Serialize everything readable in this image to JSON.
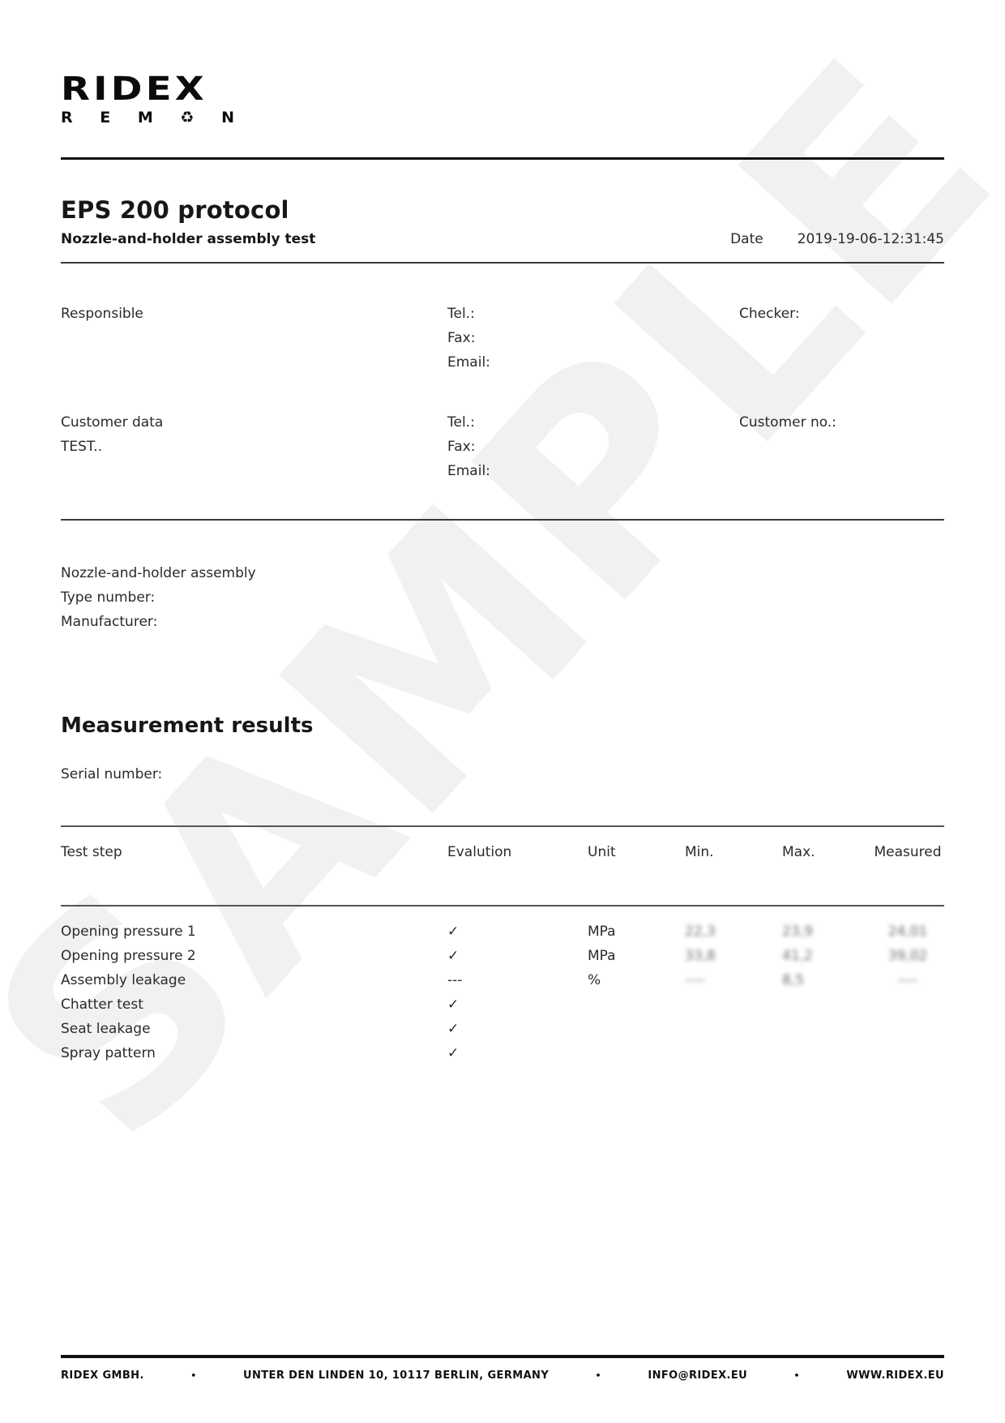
{
  "logo": {
    "name": "RIDEX",
    "reman": [
      "R",
      "E",
      "M",
      "♻",
      "N"
    ]
  },
  "watermark": {
    "text": "SAMPLE"
  },
  "header": {
    "title": "EPS 200 protocol",
    "subtitle": "Nozzle-and-holder assembly test",
    "date_label": "Date",
    "date_value": "2019-19-06-12:31:45"
  },
  "responsible": {
    "label": "Responsible",
    "tel_label": "Tel.:",
    "fax_label": "Fax:",
    "email_label": "Email:",
    "checker_label": "Checker:"
  },
  "customer": {
    "label": "Customer data",
    "name": "TEST..",
    "tel_label": "Tel.:",
    "fax_label": "Fax:",
    "email_label": "Email:",
    "customer_no_label": "Customer no.:"
  },
  "assembly": {
    "title": "Nozzle-and-holder assembly",
    "type_number_label": "Type number:",
    "manufacturer_label": "Manufacturer:"
  },
  "results": {
    "heading": "Measurement results",
    "serial_label": "Serial number:",
    "table": {
      "headers": [
        "Test step",
        "Evalution",
        "Unit",
        "Min.",
        "Max.",
        "Measured"
      ],
      "rows": [
        {
          "step": "Opening pressure 1",
          "evaluation": "✓",
          "unit": "MPa",
          "min": "22,3",
          "max": "23,9",
          "measured": "24,01",
          "blurred": true
        },
        {
          "step": "Opening pressure 2",
          "evaluation": "✓",
          "unit": "MPa",
          "min": "33,8",
          "max": "41,2",
          "measured": "39,02",
          "blurred": true
        },
        {
          "step": "Assembly leakage",
          "evaluation": "---",
          "unit": "%",
          "min": "----",
          "max": "8,5",
          "measured": "----",
          "blurred": true
        },
        {
          "step": "Chatter test",
          "evaluation": "✓",
          "unit": "",
          "min": "",
          "max": "",
          "measured": "",
          "blurred": false
        },
        {
          "step": "Seat leakage",
          "evaluation": "✓",
          "unit": "",
          "min": "",
          "max": "",
          "measured": "",
          "blurred": false
        },
        {
          "step": "Spray pattern",
          "evaluation": "✓",
          "unit": "",
          "min": "",
          "max": "",
          "measured": "",
          "blurred": false
        }
      ]
    }
  },
  "footer": {
    "separator": "•",
    "items": [
      "RIDEX GMBH.",
      "UNTER DEN LINDEN 10, 10117 BERLIN, GERMANY",
      "INFO@RIDEX.EU",
      "WWW.RIDEX.EU"
    ]
  }
}
